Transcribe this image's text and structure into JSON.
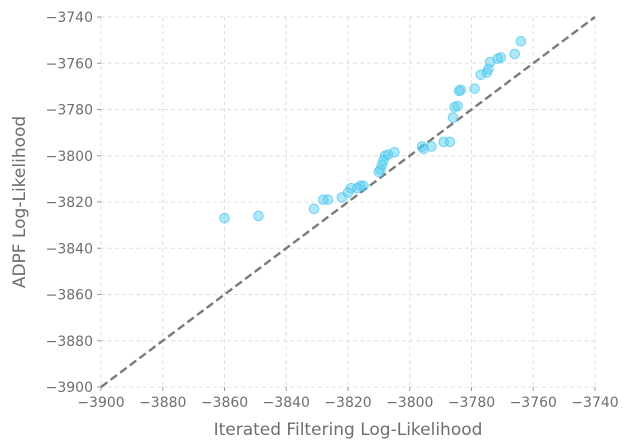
{
  "chart_data": {
    "type": "scatter",
    "title": "",
    "xlabel": "Iterated Filtering Log-Likelihood",
    "ylabel": "ADPF Log-Likelihood",
    "xlim": [
      -3900,
      -3740
    ],
    "ylim": [
      -3900,
      -3740
    ],
    "xticks": [
      -3900,
      -3880,
      -3860,
      -3840,
      -3820,
      -3800,
      -3780,
      -3760,
      -3740
    ],
    "yticks": [
      -3900,
      -3880,
      -3860,
      -3840,
      -3820,
      -3800,
      -3780,
      -3760,
      -3740
    ],
    "xtick_labels": [
      "−3900",
      "−3880",
      "−3860",
      "−3840",
      "−3820",
      "−3800",
      "−3780",
      "−3760",
      "−3740"
    ],
    "ytick_labels": [
      "−3900",
      "−3880",
      "−3860",
      "−3840",
      "−3820",
      "−3800",
      "−3780",
      "−3760",
      "−3740"
    ],
    "grid": true,
    "reference_line": {
      "style": "dashed",
      "color": "#7a7a7a",
      "from": [
        -3900,
        -3900
      ],
      "to": [
        -3740,
        -3740
      ]
    },
    "point_color": "#4fc9ef",
    "point_opacity": 0.45,
    "points": [
      {
        "x": -3860,
        "y": -3827
      },
      {
        "x": -3849,
        "y": -3826
      },
      {
        "x": -3831,
        "y": -3823
      },
      {
        "x": -3828,
        "y": -3819
      },
      {
        "x": -3826.5,
        "y": -3819
      },
      {
        "x": -3822,
        "y": -3818
      },
      {
        "x": -3820,
        "y": -3816
      },
      {
        "x": -3819,
        "y": -3814
      },
      {
        "x": -3817,
        "y": -3814
      },
      {
        "x": -3816,
        "y": -3813
      },
      {
        "x": -3815,
        "y": -3813
      },
      {
        "x": -3810,
        "y": -3807
      },
      {
        "x": -3809.5,
        "y": -3806
      },
      {
        "x": -3809,
        "y": -3804
      },
      {
        "x": -3808.5,
        "y": -3802
      },
      {
        "x": -3808,
        "y": -3800
      },
      {
        "x": -3807,
        "y": -3799.5
      },
      {
        "x": -3805,
        "y": -3798.5
      },
      {
        "x": -3796,
        "y": -3796
      },
      {
        "x": -3795.5,
        "y": -3797
      },
      {
        "x": -3793,
        "y": -3796
      },
      {
        "x": -3789,
        "y": -3794
      },
      {
        "x": -3787,
        "y": -3794
      },
      {
        "x": -3786,
        "y": -3783.5
      },
      {
        "x": -3785.5,
        "y": -3779
      },
      {
        "x": -3784.5,
        "y": -3778.5
      },
      {
        "x": -3784,
        "y": -3772
      },
      {
        "x": -3783.5,
        "y": -3771.5
      },
      {
        "x": -3779,
        "y": -3771
      },
      {
        "x": -3777,
        "y": -3765
      },
      {
        "x": -3775,
        "y": -3764
      },
      {
        "x": -3774.5,
        "y": -3762.5
      },
      {
        "x": -3774,
        "y": -3759.5
      },
      {
        "x": -3771.5,
        "y": -3758
      },
      {
        "x": -3770.5,
        "y": -3757.5
      },
      {
        "x": -3766,
        "y": -3756
      },
      {
        "x": -3764,
        "y": -3750.5
      }
    ]
  }
}
